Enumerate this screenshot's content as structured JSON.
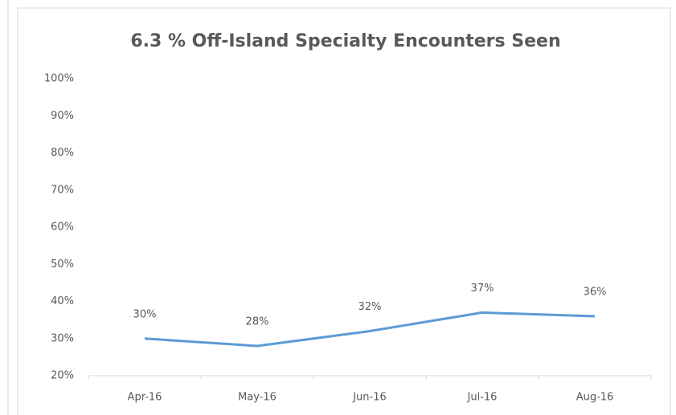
{
  "chart_data": {
    "type": "line",
    "title": "6.3 % Off-Island Specialty Encounters Seen",
    "categories": [
      "Apr-16",
      "May-16",
      "Jun-16",
      "Jul-16",
      "Aug-16"
    ],
    "series": [
      {
        "color": "#5b9bd5",
        "values": [
          30,
          28,
          32,
          37,
          36
        ],
        "value_labels": [
          "30%",
          "28%",
          "32%",
          "37%",
          "36%"
        ]
      }
    ],
    "ylim": [
      20,
      100
    ],
    "yticks": [
      {
        "value": 20,
        "label": "20%"
      },
      {
        "value": 30,
        "label": "30%"
      },
      {
        "value": 40,
        "label": "40%"
      },
      {
        "value": 50,
        "label": "50%"
      },
      {
        "value": 60,
        "label": "60%"
      },
      {
        "value": 70,
        "label": "70%"
      },
      {
        "value": 80,
        "label": "80%"
      },
      {
        "value": 90,
        "label": "90%"
      },
      {
        "value": 100,
        "label": "100%"
      }
    ],
    "grid": false
  }
}
